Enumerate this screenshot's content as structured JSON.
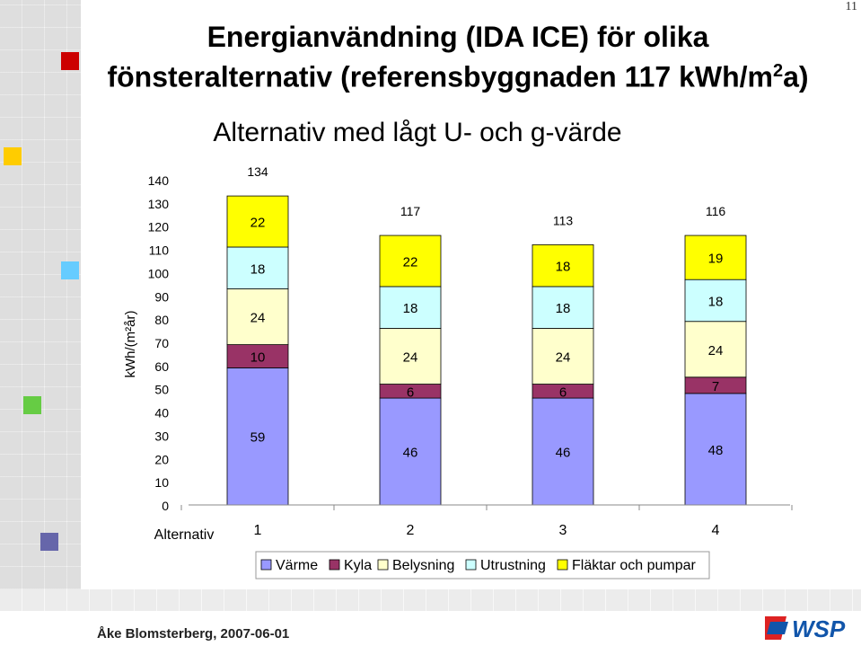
{
  "page_number": "11",
  "title_line1": "Energianvändning (IDA ICE) för olika",
  "title_line2": "fönsteralternativ (referensbyggnaden 117 kWh/m",
  "title_line2_sup": "2",
  "title_line2_end": "a)",
  "footer": {
    "author": "Åke Blomsterberg, 2007-06-01",
    "logo_text": "WSP"
  },
  "colors": {
    "Värme": "#9999ff",
    "Kyla": "#993366",
    "Belysning": "#ffffcc",
    "Utrustning": "#ccffff",
    "Fläktar och pumpar": "#ffff00",
    "accent_red": "#cc0000",
    "accent_yellow": "#ffcc00",
    "accent_blue": "#66ccff",
    "accent_green": "#66cc44",
    "accent_purple": "#6666aa",
    "logo_blue": "#1155aa",
    "logo_red": "#dd2222"
  },
  "chart_data": {
    "type": "bar",
    "stacked": true,
    "title": "Alternativ med lågt U- och g-värde",
    "xlabel": "Alternativ",
    "ylabel": "kWh/(m²år)",
    "ylim": [
      0,
      140
    ],
    "yticks": [
      0,
      10,
      20,
      30,
      40,
      50,
      60,
      70,
      80,
      90,
      100,
      110,
      120,
      130,
      140
    ],
    "categories": [
      "1",
      "2",
      "3",
      "4"
    ],
    "series": [
      {
        "name": "Värme",
        "values": [
          59,
          46,
          46,
          48
        ]
      },
      {
        "name": "Kyla",
        "values": [
          10,
          6,
          6,
          7
        ]
      },
      {
        "name": "Belysning",
        "values": [
          24,
          24,
          24,
          24
        ]
      },
      {
        "name": "Utrustning",
        "values": [
          18,
          18,
          18,
          18
        ]
      },
      {
        "name": "Fläktar och pumpar",
        "values": [
          22,
          22,
          18,
          19
        ]
      }
    ],
    "totals": [
      134,
      117,
      113,
      116
    ],
    "legend": {
      "position": "bottom"
    },
    "grid": false
  }
}
